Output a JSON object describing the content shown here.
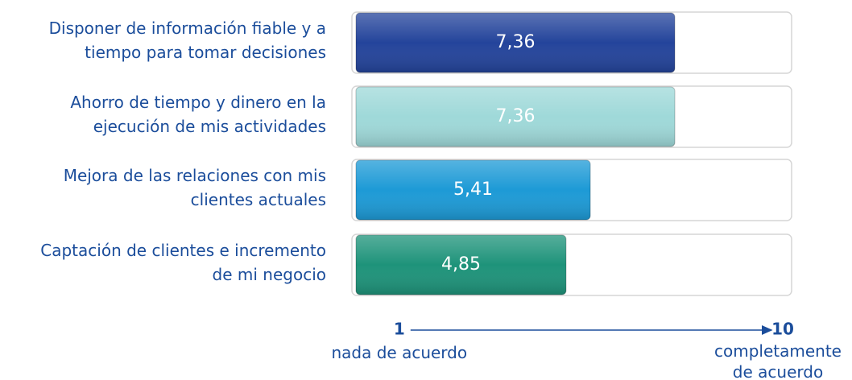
{
  "chart_data": {
    "type": "hbar",
    "categories": [
      "Disponer de información fiable y a\ntiempo para tomar decisiones",
      "Ahorro de tiempo y dinero en la\nejecución de mis actividades",
      "Mejora de las relaciones con mis\nclientes actuales",
      "Captación de clientes e incremento\nde mi negocio"
    ],
    "values": [
      7.36,
      7.36,
      5.41,
      4.85
    ],
    "value_labels": [
      "7,36",
      "7,36",
      "5,41",
      "4,85"
    ],
    "colors": [
      "#24449b",
      "#9fd9d9",
      "#1d9ad6",
      "#1e937a"
    ],
    "xlim": [
      0,
      10
    ],
    "xticks": [
      1,
      10
    ],
    "x_min_label": "nada de acuerdo",
    "x_max_label": "completamente\nde acuerdo"
  }
}
